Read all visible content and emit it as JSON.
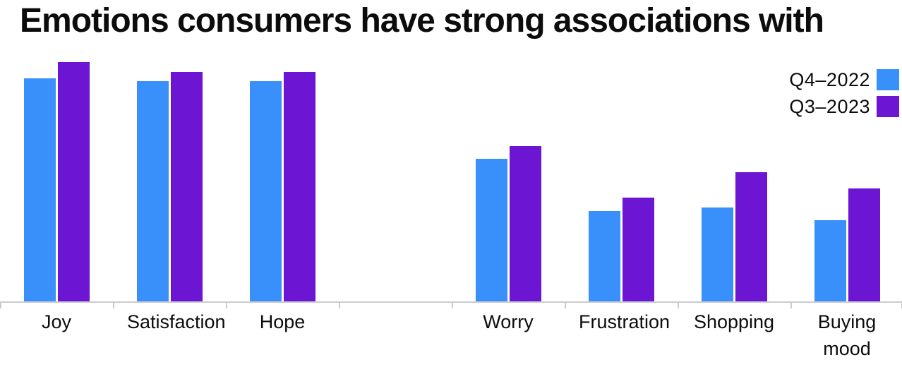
{
  "title": "Emotions consumers have strong associations with",
  "legend": {
    "items": [
      {
        "label": "Q4–2022",
        "color": "#3990fa"
      },
      {
        "label": "Q3–2023",
        "color": "#6c15d2"
      }
    ]
  },
  "chart_data": {
    "type": "bar",
    "title": "Emotions consumers have strong associations with",
    "categories": [
      "Joy",
      "Satisfaction",
      "Hope",
      "Worry",
      "Frustration",
      "Shopping",
      "Buying mood"
    ],
    "series": [
      {
        "name": "Q4-2022",
        "color": "#3990fa",
        "values": [
          69,
          68,
          68,
          44,
          28,
          29,
          25
        ]
      },
      {
        "name": "Q3-2023",
        "color": "#6c15d2",
        "values": [
          74,
          71,
          71,
          48,
          32,
          40,
          35
        ]
      }
    ],
    "xlabel": "",
    "ylabel": "",
    "ylim": [
      0,
      100
    ],
    "gridlines": false,
    "y_axis_visible": false,
    "legend_position": "top-right",
    "gap_after_category": "Hope",
    "axis_color": "#c9cccf",
    "text_color": "#0c0c0c"
  }
}
